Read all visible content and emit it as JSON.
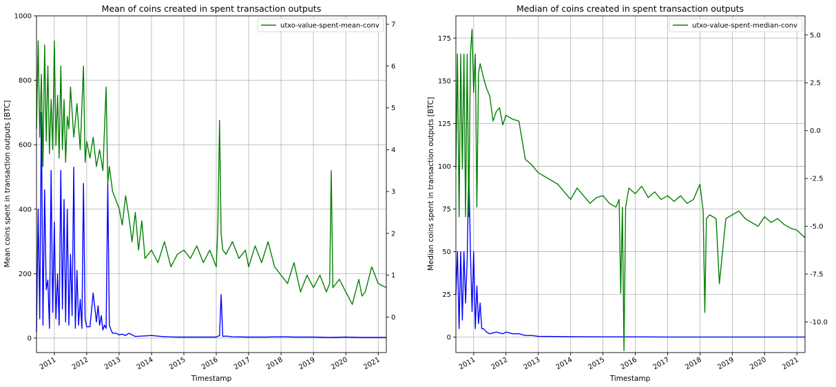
{
  "chart_data": [
    {
      "type": "line",
      "title": "Mean of coins created in spent transaction outputs",
      "xlabel": "Timestamp",
      "ylabel": "Mean coins spent in transaction outputs [BTC]",
      "ylabel_right": "",
      "grid": true,
      "legend_position": "top-right",
      "xlim": [
        2010.45,
        2021.25
      ],
      "ylim": [
        -45,
        1000
      ],
      "ylim_right": [
        -0.85,
        7.2
      ],
      "x_ticks": [
        2011,
        2012,
        2013,
        2014,
        2015,
        2016,
        2017,
        2018,
        2019,
        2020,
        2021
      ],
      "y_ticks": [
        0,
        200,
        400,
        600,
        800,
        1000
      ],
      "y_ticks_right": [
        0,
        1,
        2,
        3,
        4,
        5,
        6,
        7
      ],
      "series": [
        {
          "name": "",
          "axis": "left",
          "color": "#0000ff",
          "x": [
            2010.45,
            2010.5,
            2010.55,
            2010.6,
            2010.65,
            2010.7,
            2010.75,
            2010.8,
            2010.85,
            2010.9,
            2010.95,
            2011.0,
            2011.05,
            2011.1,
            2011.15,
            2011.2,
            2011.25,
            2011.3,
            2011.35,
            2011.4,
            2011.45,
            2011.5,
            2011.55,
            2011.6,
            2011.65,
            2011.7,
            2011.75,
            2011.8,
            2011.85,
            2011.9,
            2011.95,
            2012.0,
            2012.1,
            2012.2,
            2012.3,
            2012.35,
            2012.4,
            2012.45,
            2012.5,
            2012.55,
            2012.6,
            2012.65,
            2012.7,
            2012.75,
            2012.8,
            2012.9,
            2013.0,
            2013.1,
            2013.2,
            2013.3,
            2013.5,
            2013.7,
            2014.0,
            2014.3,
            2014.5,
            2014.8,
            2015.0,
            2015.5,
            2016.0,
            2016.1,
            2016.15,
            2016.2,
            2016.3,
            2016.5,
            2017.0,
            2017.5,
            2018.0,
            2018.5,
            2019.0,
            2019.5,
            2020.0,
            2020.5,
            2021.0,
            2021.25
          ],
          "y": [
            20,
            400,
            60,
            700,
            40,
            460,
            150,
            180,
            30,
            520,
            80,
            360,
            60,
            200,
            40,
            520,
            90,
            430,
            50,
            400,
            40,
            260,
            70,
            530,
            30,
            210,
            40,
            120,
            30,
            480,
            60,
            35,
            35,
            140,
            50,
            100,
            40,
            70,
            25,
            40,
            30,
            480,
            40,
            25,
            15,
            15,
            10,
            12,
            8,
            15,
            5,
            6,
            8,
            5,
            4,
            3,
            3,
            3,
            3,
            8,
            135,
            5,
            6,
            4,
            3,
            3,
            4,
            3,
            3,
            2,
            3,
            2,
            2,
            2
          ]
        },
        {
          "name": "utxo-value-spent-mean-conv",
          "axis": "right",
          "color": "#008000",
          "x": [
            2010.45,
            2010.5,
            2010.55,
            2010.6,
            2010.65,
            2010.7,
            2010.75,
            2010.8,
            2010.85,
            2010.9,
            2010.95,
            2011.0,
            2011.05,
            2011.1,
            2011.15,
            2011.2,
            2011.25,
            2011.3,
            2011.35,
            2011.4,
            2011.45,
            2011.5,
            2011.6,
            2011.7,
            2011.8,
            2011.9,
            2011.95,
            2012.0,
            2012.1,
            2012.2,
            2012.3,
            2012.4,
            2012.5,
            2012.6,
            2012.65,
            2012.7,
            2012.8,
            2012.9,
            2013.0,
            2013.1,
            2013.2,
            2013.3,
            2013.4,
            2013.5,
            2013.6,
            2013.7,
            2013.8,
            2014.0,
            2014.2,
            2014.4,
            2014.6,
            2014.8,
            2015.0,
            2015.2,
            2015.4,
            2015.6,
            2015.8,
            2016.0,
            2016.05,
            2016.1,
            2016.15,
            2016.2,
            2016.3,
            2016.5,
            2016.7,
            2016.9,
            2017.0,
            2017.2,
            2017.4,
            2017.6,
            2017.8,
            2018.0,
            2018.2,
            2018.4,
            2018.6,
            2018.8,
            2019.0,
            2019.2,
            2019.4,
            2019.5,
            2019.55,
            2019.6,
            2019.8,
            2020.0,
            2020.2,
            2020.4,
            2020.5,
            2020.6,
            2020.8,
            2021.0,
            2021.25
          ],
          "y": [
            4.5,
            6.6,
            4.3,
            5.8,
            3.6,
            6.5,
            4.2,
            6.0,
            3.9,
            5.2,
            4.0,
            6.6,
            4.1,
            5.3,
            3.8,
            6.0,
            4.0,
            5.2,
            3.7,
            4.8,
            4.5,
            5.5,
            4.3,
            5.1,
            4.0,
            6.0,
            3.7,
            4.2,
            3.8,
            4.3,
            3.6,
            4.0,
            3.5,
            5.5,
            3.2,
            3.6,
            3.0,
            2.8,
            2.6,
            2.2,
            2.9,
            2.4,
            1.8,
            2.5,
            1.6,
            2.3,
            1.4,
            1.6,
            1.3,
            1.8,
            1.2,
            1.5,
            1.6,
            1.4,
            1.7,
            1.3,
            1.6,
            1.2,
            2.2,
            4.7,
            2.0,
            1.6,
            1.5,
            1.8,
            1.4,
            1.6,
            1.2,
            1.7,
            1.3,
            1.8,
            1.2,
            1.0,
            0.8,
            1.3,
            0.6,
            1.0,
            0.7,
            1.0,
            0.6,
            0.8,
            3.5,
            0.7,
            0.9,
            0.6,
            0.3,
            0.9,
            0.5,
            0.6,
            1.2,
            0.8,
            0.7
          ]
        }
      ]
    },
    {
      "type": "line",
      "title": "Median of coins created in spent transaction outputs",
      "xlabel": "Timestamp",
      "ylabel": "Median coins spent in transaction outputs [BTC]",
      "ylabel_right": "",
      "grid": true,
      "legend_position": "top-right",
      "xlim": [
        2010.45,
        2021.25
      ],
      "ylim": [
        -9,
        188
      ],
      "ylim_right": [
        -11.6,
        6.0
      ],
      "x_ticks": [
        2011,
        2012,
        2013,
        2014,
        2015,
        2016,
        2017,
        2018,
        2019,
        2020,
        2021
      ],
      "y_ticks": [
        0,
        25,
        50,
        75,
        100,
        125,
        150,
        175
      ],
      "y_ticks_right": [
        -10.0,
        -7.5,
        -5.0,
        -2.5,
        0.0,
        2.5,
        5.0
      ],
      "series": [
        {
          "name": "",
          "axis": "left",
          "color": "#0000ff",
          "x": [
            2010.45,
            2010.5,
            2010.55,
            2010.6,
            2010.65,
            2010.7,
            2010.75,
            2010.8,
            2010.85,
            2010.9,
            2010.95,
            2011.0,
            2011.05,
            2011.1,
            2011.15,
            2011.2,
            2011.25,
            2011.3,
            2011.4,
            2011.5,
            2011.7,
            2011.9,
            2012.0,
            2012.2,
            2012.4,
            2012.6,
            2012.8,
            2013.0,
            2014.0,
            2015.0,
            2016.0,
            2017.0,
            2018.0,
            2019.0,
            2020.0,
            2021.25
          ],
          "y": [
            25,
            50,
            5,
            50,
            10,
            50,
            20,
            45,
            100,
            50,
            15,
            50,
            5,
            30,
            8,
            20,
            5,
            5,
            3,
            2,
            3,
            2,
            3,
            2,
            2,
            1,
            1,
            0.5,
            0.3,
            0.2,
            0.2,
            0.1,
            0.1,
            0.1,
            0.1,
            0.1
          ]
        },
        {
          "name": "utxo-value-spent-median-conv",
          "axis": "right",
          "color": "#008000",
          "x": [
            2010.45,
            2010.5,
            2010.55,
            2010.6,
            2010.65,
            2010.7,
            2010.75,
            2010.8,
            2010.85,
            2010.9,
            2010.95,
            2011.0,
            2011.05,
            2011.1,
            2011.15,
            2011.2,
            2011.3,
            2011.4,
            2011.5,
            2011.6,
            2011.7,
            2011.8,
            2011.9,
            2012.0,
            2012.2,
            2012.4,
            2012.5,
            2012.6,
            2012.8,
            2013.0,
            2013.2,
            2013.4,
            2013.6,
            2013.8,
            2014.0,
            2014.2,
            2014.4,
            2014.6,
            2014.8,
            2015.0,
            2015.2,
            2015.4,
            2015.5,
            2015.55,
            2015.6,
            2015.65,
            2015.7,
            2015.8,
            2016.0,
            2016.2,
            2016.4,
            2016.6,
            2016.8,
            2017.0,
            2017.2,
            2017.4,
            2017.6,
            2017.8,
            2018.0,
            2018.1,
            2018.15,
            2018.2,
            2018.3,
            2018.5,
            2018.6,
            2018.8,
            2019.0,
            2019.2,
            2019.4,
            2019.6,
            2019.8,
            2020.0,
            2020.2,
            2020.4,
            2020.6,
            2020.8,
            2021.0,
            2021.25
          ],
          "y": [
            -2,
            4,
            -4.5,
            4,
            -2,
            4,
            -4.5,
            4,
            -4.5,
            4,
            5.3,
            2,
            4,
            -4,
            3,
            3.5,
            2.8,
            2.2,
            1.8,
            0.5,
            1,
            1.2,
            0.3,
            0.8,
            0.6,
            0.5,
            -0.5,
            -1.5,
            -1.8,
            -2.2,
            -2.4,
            -2.6,
            -2.8,
            -3.2,
            -3.6,
            -3.0,
            -3.4,
            -3.8,
            -3.5,
            -3.4,
            -3.8,
            -4.0,
            -3.6,
            -8.5,
            -4,
            -11.5,
            -4,
            -3.0,
            -3.3,
            -2.9,
            -3.5,
            -3.2,
            -3.6,
            -3.4,
            -3.7,
            -3.4,
            -3.8,
            -3.6,
            -2.8,
            -4.2,
            -9.5,
            -4.6,
            -4.4,
            -4.6,
            -8.0,
            -4.6,
            -4.4,
            -4.2,
            -4.6,
            -4.8,
            -5.0,
            -4.5,
            -4.8,
            -4.6,
            -4.9,
            -5.1,
            -5.2,
            -5.6
          ]
        }
      ]
    }
  ]
}
